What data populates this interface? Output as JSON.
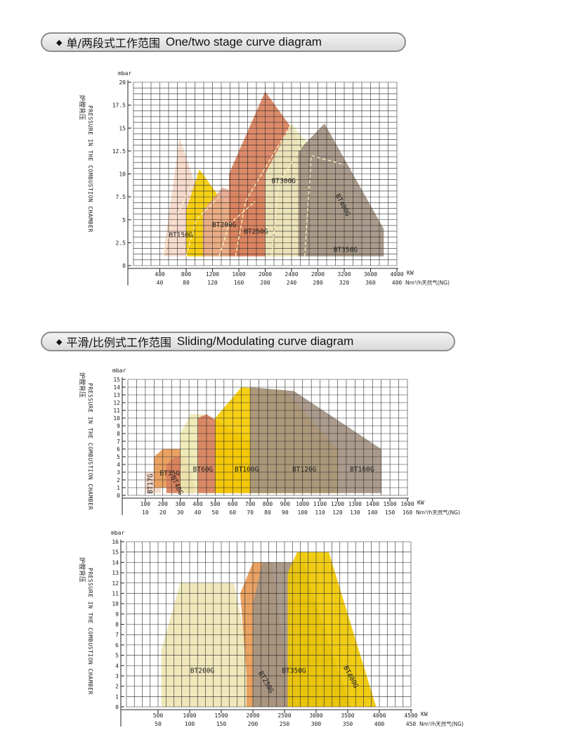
{
  "headers": [
    {
      "zh": "单/两段式工作范围",
      "en": "One/two stage curve diagram"
    },
    {
      "zh": "平滑/比例式工作范围",
      "en": "Sliding/Modulating curve diagram"
    }
  ],
  "chart_data": [
    {
      "type": "area",
      "unit_y": "mbar",
      "ylabel": "PRESSURE IN THE COMBUSTION CHAMBER",
      "ylabel_zh": "炉膛背压",
      "x_unit": "KW",
      "x2_unit": "Nm³/h天然气(NG)",
      "ylim": [
        0,
        20
      ],
      "y_ticks": [
        "0",
        "2.5",
        "5",
        "7.5",
        "10",
        "12.5",
        "15",
        "17.5",
        "20"
      ],
      "xlim": [
        0,
        4000
      ],
      "x_ticks": [
        400,
        800,
        1200,
        1600,
        2000,
        2400,
        2800,
        3200,
        3600,
        4000
      ],
      "x2_ticks": [
        40,
        80,
        120,
        160,
        200,
        240,
        280,
        320,
        360,
        400
      ],
      "grid": true,
      "series": [
        {
          "name": "BT150G",
          "color": "#f6d9c9",
          "points": [
            [
              450,
              1
            ],
            [
              700,
              14
            ],
            [
              1000,
              7.5
            ],
            [
              1050,
              1
            ]
          ],
          "stage": [
            [
              450,
              1
            ],
            [
              560,
              4
            ],
            [
              880,
              8.8
            ]
          ]
        },
        {
          "name": "BT200G",
          "color": "#f5cc00",
          "points": [
            [
              800,
              1
            ],
            [
              800,
              6
            ],
            [
              1000,
              10.5
            ],
            [
              1300,
              7.5
            ],
            [
              1400,
              7
            ],
            [
              1650,
              5
            ],
            [
              1650,
              1
            ]
          ],
          "stage": [
            [
              800,
              1
            ],
            [
              950,
              5
            ],
            [
              1300,
              7.5
            ]
          ]
        },
        {
          "name": "BT250G",
          "color": "#e8a98f",
          "points": [
            [
              1050,
              1
            ],
            [
              1050,
              6
            ],
            [
              1350,
              8.5
            ],
            [
              1750,
              7.5
            ],
            [
              2250,
              7.5
            ],
            [
              2250,
              1
            ]
          ],
          "stage": [
            [
              1300,
              1
            ],
            [
              1450,
              4.5
            ],
            [
              1850,
              7
            ]
          ]
        },
        {
          "name": "BT300G",
          "color": "#d9805c",
          "points": [
            [
              1450,
              1
            ],
            [
              1450,
              10
            ],
            [
              2000,
              19
            ],
            [
              2500,
              14
            ],
            [
              2500,
              1
            ]
          ],
          "stage": [
            [
              1550,
              1
            ],
            [
              1700,
              7
            ],
            [
              2400,
              15.5
            ]
          ]
        },
        {
          "name": "BT350G",
          "color": "#edebc0",
          "points": [
            [
              2000,
              1
            ],
            [
              2000,
              10
            ],
            [
              2400,
              15.5
            ],
            [
              3350,
              7
            ],
            [
              3350,
              1
            ]
          ],
          "stage": [
            [
              2100,
              1
            ],
            [
              2200,
              9
            ],
            [
              2650,
              14
            ]
          ]
        },
        {
          "name": "BT400G",
          "color": "#a39382",
          "points": [
            [
              2500,
              1
            ],
            [
              2500,
              12.5
            ],
            [
              2900,
              15.5
            ],
            [
              3800,
              4
            ],
            [
              3800,
              1
            ]
          ],
          "stage": [
            [
              2600,
              1
            ],
            [
              2700,
              12
            ],
            [
              3200,
              11
            ]
          ]
        }
      ]
    },
    {
      "type": "area",
      "unit_y": "mbar",
      "ylabel": "PRESSURE IN THE COMBUSTION CHAMBER",
      "ylabel_zh": "炉膛背压",
      "x_unit": "KW",
      "x2_unit": "Nm³/h天然气(NG)",
      "ylim": [
        0,
        15
      ],
      "y_ticks": [
        "0",
        "1",
        "2",
        "3",
        "4",
        "5",
        "6",
        "7",
        "8",
        "9",
        "10",
        "11",
        "12",
        "13",
        "14",
        "15"
      ],
      "xlim": [
        0,
        1600
      ],
      "x_ticks": [
        100,
        200,
        300,
        400,
        500,
        600,
        700,
        800,
        900,
        1000,
        1100,
        1200,
        1300,
        1400,
        1500,
        1600
      ],
      "x2_ticks": [
        10,
        20,
        30,
        40,
        50,
        60,
        70,
        80,
        90,
        100,
        110,
        120,
        130,
        140,
        150,
        160
      ],
      "grid": true,
      "series": [
        {
          "name": "BT17G",
          "color": "#f6d9c9",
          "points": [
            [
              100,
              0.3
            ],
            [
              100,
              3
            ],
            [
              150,
              3
            ],
            [
              190,
              1.5
            ],
            [
              190,
              0.3
            ]
          ]
        },
        {
          "name": "BT35G",
          "color": "#e89a55",
          "points": [
            [
              150,
              1
            ],
            [
              150,
              5
            ],
            [
              200,
              6
            ],
            [
              300,
              6
            ],
            [
              340,
              3
            ],
            [
              340,
              1
            ]
          ]
        },
        {
          "name": "BT40G",
          "color": "#d9805c",
          "points": [
            [
              220,
              0.3
            ],
            [
              220,
              4
            ],
            [
              270,
              5
            ],
            [
              330,
              5
            ],
            [
              380,
              1.5
            ],
            [
              380,
              0.3
            ]
          ]
        },
        {
          "name": "BT60G",
          "color": "#efe9b3",
          "points": [
            [
              300,
              0.3
            ],
            [
              300,
              8
            ],
            [
              360,
              10.5
            ],
            [
              430,
              10.5
            ],
            [
              560,
              5
            ],
            [
              560,
              0.3
            ]
          ]
        },
        {
          "name": "BT100G",
          "color": "#d9805c",
          "points": [
            [
              400,
              0.3
            ],
            [
              400,
              10
            ],
            [
              450,
              10.5
            ],
            [
              700,
              7
            ],
            [
              850,
              1
            ],
            [
              850,
              0.3
            ]
          ]
        },
        {
          "name": "BT120G",
          "color": "#f5cc00",
          "points": [
            [
              500,
              0.3
            ],
            [
              500,
              10
            ],
            [
              650,
              14
            ],
            [
              900,
              13.5
            ],
            [
              1200,
              6
            ],
            [
              1200,
              0.3
            ]
          ]
        },
        {
          "name": "BT160G",
          "color": "#a39382",
          "points": [
            [
              700,
              0.3
            ],
            [
              700,
              14
            ],
            [
              950,
              13.5
            ],
            [
              1450,
              6
            ],
            [
              1450,
              0.3
            ]
          ]
        }
      ]
    },
    {
      "type": "area",
      "unit_y": "mbar",
      "ylabel": "PRESSURE IN THE COMBUSTION CHAMBER",
      "ylabel_zh": "炉膛背压",
      "x_unit": "KW",
      "x2_unit": "Nm³/h天然气(NG)",
      "ylim": [
        0,
        16
      ],
      "y_ticks": [
        "0",
        "1",
        "2",
        "3",
        "4",
        "5",
        "6",
        "7",
        "8",
        "9",
        "10",
        "11",
        "12",
        "13",
        "14",
        "15",
        "16"
      ],
      "xlim": [
        0,
        4500
      ],
      "x_ticks": [
        500,
        1000,
        1500,
        2000,
        2500,
        3000,
        3500,
        4000,
        4500
      ],
      "x2_ticks": [
        50,
        100,
        150,
        200,
        250,
        300,
        350,
        400,
        450
      ],
      "grid": true,
      "series": [
        {
          "name": "BT200G",
          "color": "#efe6b5",
          "points": [
            [
              550,
              0
            ],
            [
              550,
              5.5
            ],
            [
              850,
              12
            ],
            [
              1700,
              12
            ],
            [
              2000,
              3
            ],
            [
              2000,
              0
            ]
          ]
        },
        {
          "name": "BT250G",
          "color": "#e89a55",
          "points": [
            [
              1900,
              0
            ],
            [
              1900,
              3
            ],
            [
              1800,
              11
            ],
            [
              2000,
              14
            ],
            [
              2300,
              14
            ],
            [
              2550,
              3
            ],
            [
              2550,
              0
            ]
          ]
        },
        {
          "name": "BT350G",
          "color": "#a39382",
          "points": [
            [
              2000,
              0
            ],
            [
              2000,
              10
            ],
            [
              2150,
              14
            ],
            [
              2800,
              14
            ],
            [
              3200,
              6
            ],
            [
              3550,
              0
            ]
          ]
        },
        {
          "name": "BT400G",
          "color": "#f0c800",
          "points": [
            [
              2550,
              0
            ],
            [
              2550,
              13
            ],
            [
              2700,
              15
            ],
            [
              3200,
              15
            ],
            [
              3950,
              0
            ]
          ]
        }
      ]
    }
  ]
}
